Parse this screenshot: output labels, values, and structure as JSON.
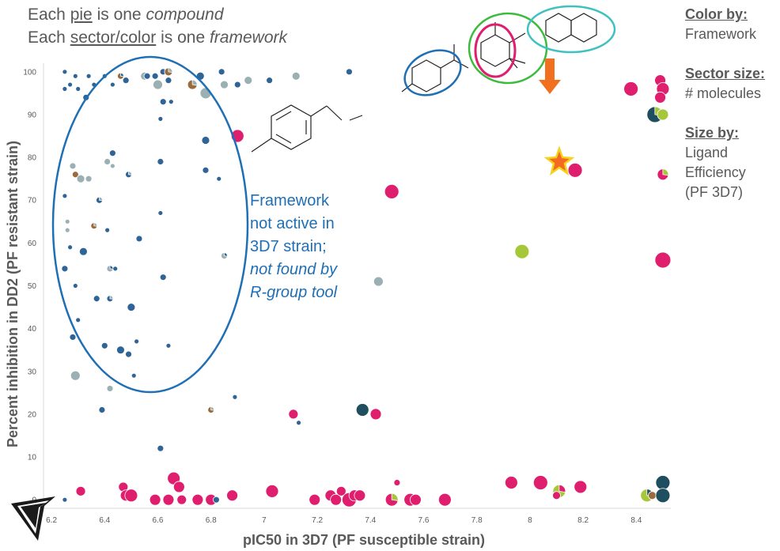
{
  "annotations": {
    "pie_line_a": "Each ",
    "pie_line_u": "pie",
    "pie_line_b": " is one ",
    "pie_line_i": "compound",
    "sector_line_a": "Each ",
    "sector_line_u": "sector/color",
    "sector_line_b": " is one ",
    "sector_line_i": "framework",
    "callout_1": "Framework",
    "callout_2": "not active in",
    "callout_3": "3D7 strain;",
    "callout_4": "not found by",
    "callout_5": "R-group tool"
  },
  "legend_panel": {
    "color_title": "Color by:",
    "color_value": "Framework",
    "sector_title": "Sector size:",
    "sector_value": "# molecules",
    "size_title": "Size by:",
    "size_value_1": "Ligand",
    "size_value_2": "Efficiency",
    "size_value_3": "(PF 3D7)"
  },
  "colors": {
    "blue": "#2f6497",
    "grayblue": "#9ab0b3",
    "pink": "#e01e6e",
    "green": "#a6c73a",
    "darkteal": "#1f4e5f",
    "brown": "#9a6b3c",
    "ellipse": "#1f6fb5",
    "star_fill": "#f26b21",
    "star_stroke": "#f5d31d",
    "arrow": "#f07020"
  },
  "chart_data": {
    "type": "scatter",
    "xlabel": "pIC50 in 3D7 (PF susceptible strain)",
    "ylabel": "Percent inhibition in DD2 (PF resistant strain)",
    "xlim": [
      6.17,
      8.53
    ],
    "ylim": [
      -2,
      102
    ],
    "xticks": [
      "6.2",
      "6.4",
      "6.6",
      "6.8",
      "7",
      "7.2",
      "7.4",
      "7.6",
      "7.8",
      "8",
      "8.2",
      "8.4"
    ],
    "yticks": [
      "0",
      "10",
      "20",
      "30",
      "40",
      "50",
      "60",
      "70",
      "80",
      "90",
      "100"
    ],
    "grid": false,
    "points": [
      {
        "x": 6.25,
        "y": 100,
        "s": 3,
        "c": "blue"
      },
      {
        "x": 6.25,
        "y": 96,
        "s": 3,
        "c": "blue"
      },
      {
        "x": 6.27,
        "y": 97,
        "s": 3,
        "c": "blue"
      },
      {
        "x": 6.29,
        "y": 99,
        "s": 3,
        "c": "blue"
      },
      {
        "x": 6.3,
        "y": 96,
        "s": 3,
        "c": "blue"
      },
      {
        "x": 6.34,
        "y": 99,
        "s": 3,
        "c": "blue"
      },
      {
        "x": 6.36,
        "y": 97,
        "s": 3,
        "c": "blue"
      },
      {
        "x": 6.4,
        "y": 99,
        "s": 3,
        "c": "blue"
      },
      {
        "x": 6.43,
        "y": 97,
        "s": 3,
        "c": "blue"
      },
      {
        "x": 6.46,
        "y": 99,
        "s": 4,
        "c": "brown",
        "c2": "blue"
      },
      {
        "x": 6.48,
        "y": 98,
        "s": 4,
        "c": "blue"
      },
      {
        "x": 6.55,
        "y": 99,
        "s": 5,
        "c": "grayblue"
      },
      {
        "x": 6.56,
        "y": 99,
        "s": 4,
        "c": "blue"
      },
      {
        "x": 6.59,
        "y": 99,
        "s": 4,
        "c": "blue"
      },
      {
        "x": 6.6,
        "y": 97,
        "s": 6,
        "c": "grayblue"
      },
      {
        "x": 6.62,
        "y": 100,
        "s": 4,
        "c": "blue"
      },
      {
        "x": 6.64,
        "y": 100,
        "s": 5,
        "c": "brown",
        "c2": "grayblue"
      },
      {
        "x": 6.64,
        "y": 98,
        "s": 4,
        "c": "blue"
      },
      {
        "x": 6.73,
        "y": 97,
        "s": 6,
        "c": "brown",
        "c2": "grayblue"
      },
      {
        "x": 6.76,
        "y": 99,
        "s": 5,
        "c": "blue"
      },
      {
        "x": 6.78,
        "y": 95,
        "s": 7,
        "c": "grayblue"
      },
      {
        "x": 6.84,
        "y": 100,
        "s": 4,
        "c": "blue"
      },
      {
        "x": 6.85,
        "y": 97,
        "s": 5,
        "c": "grayblue"
      },
      {
        "x": 6.9,
        "y": 97,
        "s": 4,
        "c": "blue"
      },
      {
        "x": 6.94,
        "y": 98,
        "s": 5,
        "c": "grayblue"
      },
      {
        "x": 7.02,
        "y": 98,
        "s": 4,
        "c": "blue"
      },
      {
        "x": 7.12,
        "y": 99,
        "s": 5,
        "c": "grayblue"
      },
      {
        "x": 7.32,
        "y": 100,
        "s": 4,
        "c": "blue"
      },
      {
        "x": 6.33,
        "y": 94,
        "s": 4,
        "c": "blue"
      },
      {
        "x": 6.62,
        "y": 93,
        "s": 4,
        "c": "blue"
      },
      {
        "x": 6.65,
        "y": 93,
        "s": 3,
        "c": "blue"
      },
      {
        "x": 6.61,
        "y": 89,
        "s": 3,
        "c": "blue"
      },
      {
        "x": 6.9,
        "y": 85,
        "s": 8,
        "c": "pink"
      },
      {
        "x": 6.78,
        "y": 84,
        "s": 5,
        "c": "blue"
      },
      {
        "x": 6.43,
        "y": 81,
        "s": 4,
        "c": "blue"
      },
      {
        "x": 6.28,
        "y": 78,
        "s": 4,
        "c": "grayblue"
      },
      {
        "x": 6.41,
        "y": 79,
        "s": 4,
        "c": "grayblue"
      },
      {
        "x": 6.43,
        "y": 78,
        "s": 3,
        "c": "grayblue"
      },
      {
        "x": 6.61,
        "y": 79,
        "s": 4,
        "c": "blue"
      },
      {
        "x": 6.78,
        "y": 77,
        "s": 4,
        "c": "blue"
      },
      {
        "x": 6.83,
        "y": 75,
        "s": 3,
        "c": "blue"
      },
      {
        "x": 6.29,
        "y": 76,
        "s": 4,
        "c": "brown"
      },
      {
        "x": 6.31,
        "y": 75,
        "s": 5,
        "c": "grayblue"
      },
      {
        "x": 6.34,
        "y": 75,
        "s": 4,
        "c": "grayblue"
      },
      {
        "x": 6.49,
        "y": 76,
        "s": 4,
        "c": "blue",
        "c2": "grayblue"
      },
      {
        "x": 6.25,
        "y": 71,
        "s": 3,
        "c": "blue"
      },
      {
        "x": 6.38,
        "y": 70,
        "s": 4,
        "c": "blue",
        "c2": "grayblue"
      },
      {
        "x": 6.61,
        "y": 67,
        "s": 3,
        "c": "blue"
      },
      {
        "x": 6.26,
        "y": 65,
        "s": 3,
        "c": "grayblue"
      },
      {
        "x": 6.26,
        "y": 63,
        "s": 3,
        "c": "grayblue"
      },
      {
        "x": 6.36,
        "y": 64,
        "s": 4,
        "c": "brown",
        "c2": "grayblue"
      },
      {
        "x": 6.41,
        "y": 63,
        "s": 3,
        "c": "blue"
      },
      {
        "x": 6.53,
        "y": 61,
        "s": 4,
        "c": "blue"
      },
      {
        "x": 6.27,
        "y": 59,
        "s": 3,
        "c": "blue"
      },
      {
        "x": 6.32,
        "y": 58,
        "s": 5,
        "c": "blue"
      },
      {
        "x": 6.85,
        "y": 57,
        "s": 4,
        "c": "grayblue",
        "c2": "blue"
      },
      {
        "x": 6.25,
        "y": 54,
        "s": 4,
        "c": "blue"
      },
      {
        "x": 6.42,
        "y": 54,
        "s": 4,
        "c": "grayblue",
        "c2": "blue"
      },
      {
        "x": 6.44,
        "y": 54,
        "s": 3,
        "c": "blue"
      },
      {
        "x": 6.62,
        "y": 52,
        "s": 4,
        "c": "blue"
      },
      {
        "x": 6.29,
        "y": 50,
        "s": 3,
        "c": "blue"
      },
      {
        "x": 6.37,
        "y": 47,
        "s": 4,
        "c": "blue"
      },
      {
        "x": 6.42,
        "y": 47,
        "s": 4,
        "c": "blue",
        "c2": "grayblue"
      },
      {
        "x": 6.5,
        "y": 45,
        "s": 5,
        "c": "blue"
      },
      {
        "x": 6.3,
        "y": 42,
        "s": 3,
        "c": "blue"
      },
      {
        "x": 6.28,
        "y": 38,
        "s": 4,
        "c": "blue"
      },
      {
        "x": 6.4,
        "y": 36,
        "s": 4,
        "c": "blue"
      },
      {
        "x": 6.52,
        "y": 37,
        "s": 3,
        "c": "blue"
      },
      {
        "x": 6.64,
        "y": 36,
        "s": 3,
        "c": "blue"
      },
      {
        "x": 6.46,
        "y": 35,
        "s": 5,
        "c": "blue"
      },
      {
        "x": 6.49,
        "y": 34,
        "s": 4,
        "c": "blue"
      },
      {
        "x": 6.29,
        "y": 29,
        "s": 6,
        "c": "grayblue"
      },
      {
        "x": 6.51,
        "y": 29,
        "s": 3,
        "c": "blue"
      },
      {
        "x": 6.42,
        "y": 26,
        "s": 4,
        "c": "grayblue"
      },
      {
        "x": 6.39,
        "y": 21,
        "s": 4,
        "c": "blue"
      },
      {
        "x": 6.8,
        "y": 21,
        "s": 4,
        "c": "brown",
        "c2": "grayblue"
      },
      {
        "x": 6.89,
        "y": 24,
        "s": 3,
        "c": "blue"
      },
      {
        "x": 6.61,
        "y": 12,
        "s": 4,
        "c": "blue"
      },
      {
        "x": 7.43,
        "y": 51,
        "s": 6,
        "c": "grayblue"
      },
      {
        "x": 7.11,
        "y": 20,
        "s": 6,
        "c": "pink"
      },
      {
        "x": 7.13,
        "y": 18,
        "s": 3,
        "c": "blue"
      },
      {
        "x": 7.37,
        "y": 21,
        "s": 8,
        "c": "darkteal"
      },
      {
        "x": 7.42,
        "y": 20,
        "s": 7,
        "c": "pink"
      },
      {
        "x": 7.48,
        "y": 72,
        "s": 9,
        "c": "pink"
      },
      {
        "x": 7.97,
        "y": 58,
        "s": 9,
        "c": "green"
      },
      {
        "x": 8.17,
        "y": 77,
        "s": 9,
        "c": "pink"
      },
      {
        "x": 8.38,
        "y": 96,
        "s": 9,
        "c": "pink"
      },
      {
        "x": 8.49,
        "y": 98,
        "s": 7,
        "c": "pink"
      },
      {
        "x": 8.5,
        "y": 96,
        "s": 8,
        "c": "pink"
      },
      {
        "x": 8.49,
        "y": 94,
        "s": 7,
        "c": "pink"
      },
      {
        "x": 8.47,
        "y": 90,
        "s": 10,
        "c": "darkteal",
        "c2": "green"
      },
      {
        "x": 8.5,
        "y": 90,
        "s": 7,
        "c": "green"
      },
      {
        "x": 8.5,
        "y": 76,
        "s": 7,
        "c": "pink",
        "c2": "green"
      },
      {
        "x": 8.5,
        "y": 56,
        "s": 10,
        "c": "pink"
      },
      {
        "x": 6.25,
        "y": 0,
        "s": 3,
        "c": "blue"
      },
      {
        "x": 6.31,
        "y": 2,
        "s": 6,
        "c": "pink"
      },
      {
        "x": 6.47,
        "y": 3,
        "s": 6,
        "c": "pink"
      },
      {
        "x": 6.48,
        "y": 1,
        "s": 7,
        "c": "pink"
      },
      {
        "x": 6.5,
        "y": 1,
        "s": 8,
        "c": "pink"
      },
      {
        "x": 6.59,
        "y": 0,
        "s": 7,
        "c": "pink"
      },
      {
        "x": 6.64,
        "y": 0,
        "s": 7,
        "c": "pink"
      },
      {
        "x": 6.66,
        "y": 5,
        "s": 8,
        "c": "pink"
      },
      {
        "x": 6.68,
        "y": 3,
        "s": 7,
        "c": "pink"
      },
      {
        "x": 6.69,
        "y": 0,
        "s": 6,
        "c": "pink"
      },
      {
        "x": 6.75,
        "y": 0,
        "s": 7,
        "c": "pink"
      },
      {
        "x": 6.8,
        "y": 0,
        "s": 7,
        "c": "pink"
      },
      {
        "x": 6.82,
        "y": 0,
        "s": 4,
        "c": "blue"
      },
      {
        "x": 6.88,
        "y": 1,
        "s": 7,
        "c": "pink"
      },
      {
        "x": 7.03,
        "y": 2,
        "s": 8,
        "c": "pink"
      },
      {
        "x": 7.19,
        "y": 0,
        "s": 7,
        "c": "pink"
      },
      {
        "x": 7.25,
        "y": 1,
        "s": 7,
        "c": "pink"
      },
      {
        "x": 7.27,
        "y": 0,
        "s": 7,
        "c": "pink"
      },
      {
        "x": 7.29,
        "y": 2,
        "s": 6,
        "c": "pink"
      },
      {
        "x": 7.32,
        "y": 0,
        "s": 9,
        "c": "pink"
      },
      {
        "x": 7.34,
        "y": 1,
        "s": 7,
        "c": "pink"
      },
      {
        "x": 7.36,
        "y": 1,
        "s": 7,
        "c": "pink"
      },
      {
        "x": 7.48,
        "y": 0,
        "s": 8,
        "c": "pink",
        "c2": "green"
      },
      {
        "x": 7.5,
        "y": 4,
        "s": 4,
        "c": "pink"
      },
      {
        "x": 7.55,
        "y": 0,
        "s": 8,
        "c": "pink"
      },
      {
        "x": 7.57,
        "y": 0,
        "s": 7,
        "c": "pink"
      },
      {
        "x": 7.68,
        "y": 0,
        "s": 8,
        "c": "pink"
      },
      {
        "x": 7.93,
        "y": 4,
        "s": 8,
        "c": "pink"
      },
      {
        "x": 8.04,
        "y": 4,
        "s": 9,
        "c": "pink"
      },
      {
        "x": 8.11,
        "y": 2,
        "s": 8,
        "c": "green",
        "c2": "pink"
      },
      {
        "x": 8.1,
        "y": 1,
        "s": 5,
        "c": "pink"
      },
      {
        "x": 8.19,
        "y": 3,
        "s": 8,
        "c": "pink"
      },
      {
        "x": 8.44,
        "y": 1,
        "s": 8,
        "c": "green",
        "c2": "darkteal"
      },
      {
        "x": 8.46,
        "y": 1,
        "s": 5,
        "c": "brown"
      },
      {
        "x": 8.5,
        "y": 4,
        "s": 9,
        "c": "darkteal"
      },
      {
        "x": 8.5,
        "y": 1,
        "s": 9,
        "c": "darkteal"
      }
    ]
  }
}
